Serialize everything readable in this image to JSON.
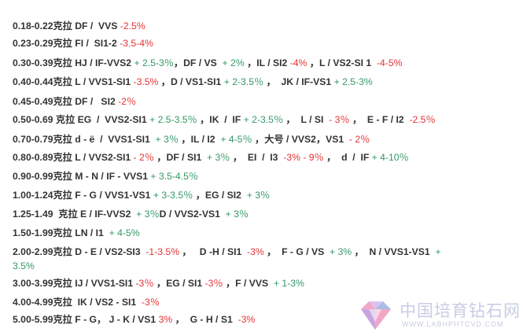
{
  "lines": [
    [
      [
        "k",
        "0.18-0.22克拉 DF /  VVS "
      ],
      [
        "r",
        "-2.5%"
      ]
    ],
    [
      [
        "k",
        "0.23-0.29克拉 FI /  SI1-2 "
      ],
      [
        "r",
        "-3.5-4%"
      ]
    ],
    [
      [
        "k",
        "0.30-0.39克拉 HJ / IF-VVS2"
      ],
      [
        "g",
        " + 2.5-3％"
      ],
      [
        "k",
        "，DF / VS "
      ],
      [
        "g",
        " + 2%"
      ],
      [
        "k",
        " ，IL / SI2 "
      ],
      [
        "r",
        "-4%"
      ],
      [
        "k",
        " ，L / VS2-SI 1 "
      ],
      [
        "r",
        " -4-5%"
      ]
    ],
    [
      [
        "k",
        "0.40-0.44克拉 L / VVS1-SI1 "
      ],
      [
        "r",
        "-3.5%"
      ],
      [
        "k",
        " ，D / VS1-SI1 "
      ],
      [
        "g",
        "+ 2-3.5％"
      ],
      [
        "k",
        " ，  JK / IF-VS1 "
      ],
      [
        "g",
        "+ 2.5-3%"
      ]
    ],
    [
      [
        "k",
        "0.45-0.49克拉 DF /   SI2 "
      ],
      [
        "r",
        "-2％"
      ]
    ],
    [
      [
        "k",
        "0.50-0.69 克拉 EG  /  VVS2-SI1 "
      ],
      [
        "g",
        "+ 2.5-3.5％"
      ],
      [
        "k",
        " ，IK  /  IF "
      ],
      [
        "g",
        "+ 2-3.5％"
      ],
      [
        "k",
        " ，  L / SI  "
      ],
      [
        "r",
        "- 3％"
      ],
      [
        "k",
        " ，  E - F / I2  "
      ],
      [
        "r",
        "-2.5％"
      ]
    ],
    [
      [
        "k",
        "0.70-0.79克拉 d - ë  /  VVS1-SI1  "
      ],
      [
        "g",
        "+ 3％"
      ],
      [
        "k",
        " ，IL / I2 "
      ],
      [
        "g",
        " + 4-5％"
      ],
      [
        "k",
        " ，大号 / VVS2，VS1 "
      ],
      [
        "r",
        " - 2％"
      ]
    ],
    [
      [
        "k",
        "0.80-0.89克拉 L / VVS2-SI1 "
      ],
      [
        "r",
        "- 2％"
      ],
      [
        "k",
        " ，DF / SI1 "
      ],
      [
        "g",
        " + 3％"
      ],
      [
        "k",
        " ，  EI  /  I3  "
      ],
      [
        "r",
        "-3% - 9％"
      ],
      [
        "k",
        " ，  d  /  IF "
      ],
      [
        "g",
        "+ 4-10％"
      ]
    ],
    [
      [
        "k",
        "0.90-0.99克拉 M - N / IF - VVS1 "
      ],
      [
        "g",
        "+ 3.5-4.5％"
      ]
    ],
    [
      [
        "k",
        "1.00-1.24克拉 F - G / VVS1-VS1 "
      ],
      [
        "g",
        "+ 3-3.5％"
      ],
      [
        "k",
        " ，EG / SI2 "
      ],
      [
        "g",
        " + 3％"
      ]
    ],
    [
      [
        "k",
        "1.25-1.49  克拉 E / IF-VVS2  "
      ],
      [
        "g",
        "+ 3％"
      ],
      [
        "k",
        "D / VVS2-VS1 "
      ],
      [
        "g",
        " + 3％"
      ]
    ],
    [
      [
        "k",
        "1.50-1.99克拉 LN / I1 "
      ],
      [
        "g",
        " + 4-5%"
      ]
    ],
    [
      [
        "k",
        "2.00-2.99克拉 D - E / VS2-SI3 "
      ],
      [
        "r",
        " -1-3.5%"
      ],
      [
        "k",
        " ，   D -H / SI1 "
      ],
      [
        "r",
        " -3%"
      ],
      [
        "k",
        " ，  F - G / VS "
      ],
      [
        "g",
        " + 3%"
      ],
      [
        "k",
        " ，  N / VVS1-VS1 "
      ],
      [
        "g",
        " +"
      ]
    ],
    [
      [
        "g",
        "3.5%"
      ]
    ],
    [
      [
        "k",
        "3.00-3.99克拉 IJ / VVS1-SI1 "
      ],
      [
        "r",
        "-3％"
      ],
      [
        "k",
        " ，EG / SI1 "
      ],
      [
        "r",
        "-3％"
      ],
      [
        "k",
        " ，F / VVS "
      ],
      [
        "g",
        " + 1-3%"
      ]
    ],
    [
      [
        "k",
        "4.00-4.99克拉  IK / VS2 - SI1 "
      ],
      [
        "r",
        " -3％"
      ]
    ],
    [
      [
        "k",
        "5.00-5.99克拉 F - G， J - K / VS1 "
      ],
      [
        "r",
        "3%"
      ],
      [
        "k",
        " ，  G - H / S1 "
      ],
      [
        "r",
        " -3%"
      ]
    ]
  ],
  "watermark": {
    "text": "中国培育钻石网",
    "url": "WWW.LABHPHTCVD.COM",
    "logo_icon": "diamond-logo-icon",
    "colors": {
      "pink": "#f4a6c8",
      "purple": "#c6a5e0",
      "blue": "#a9bde6"
    }
  }
}
